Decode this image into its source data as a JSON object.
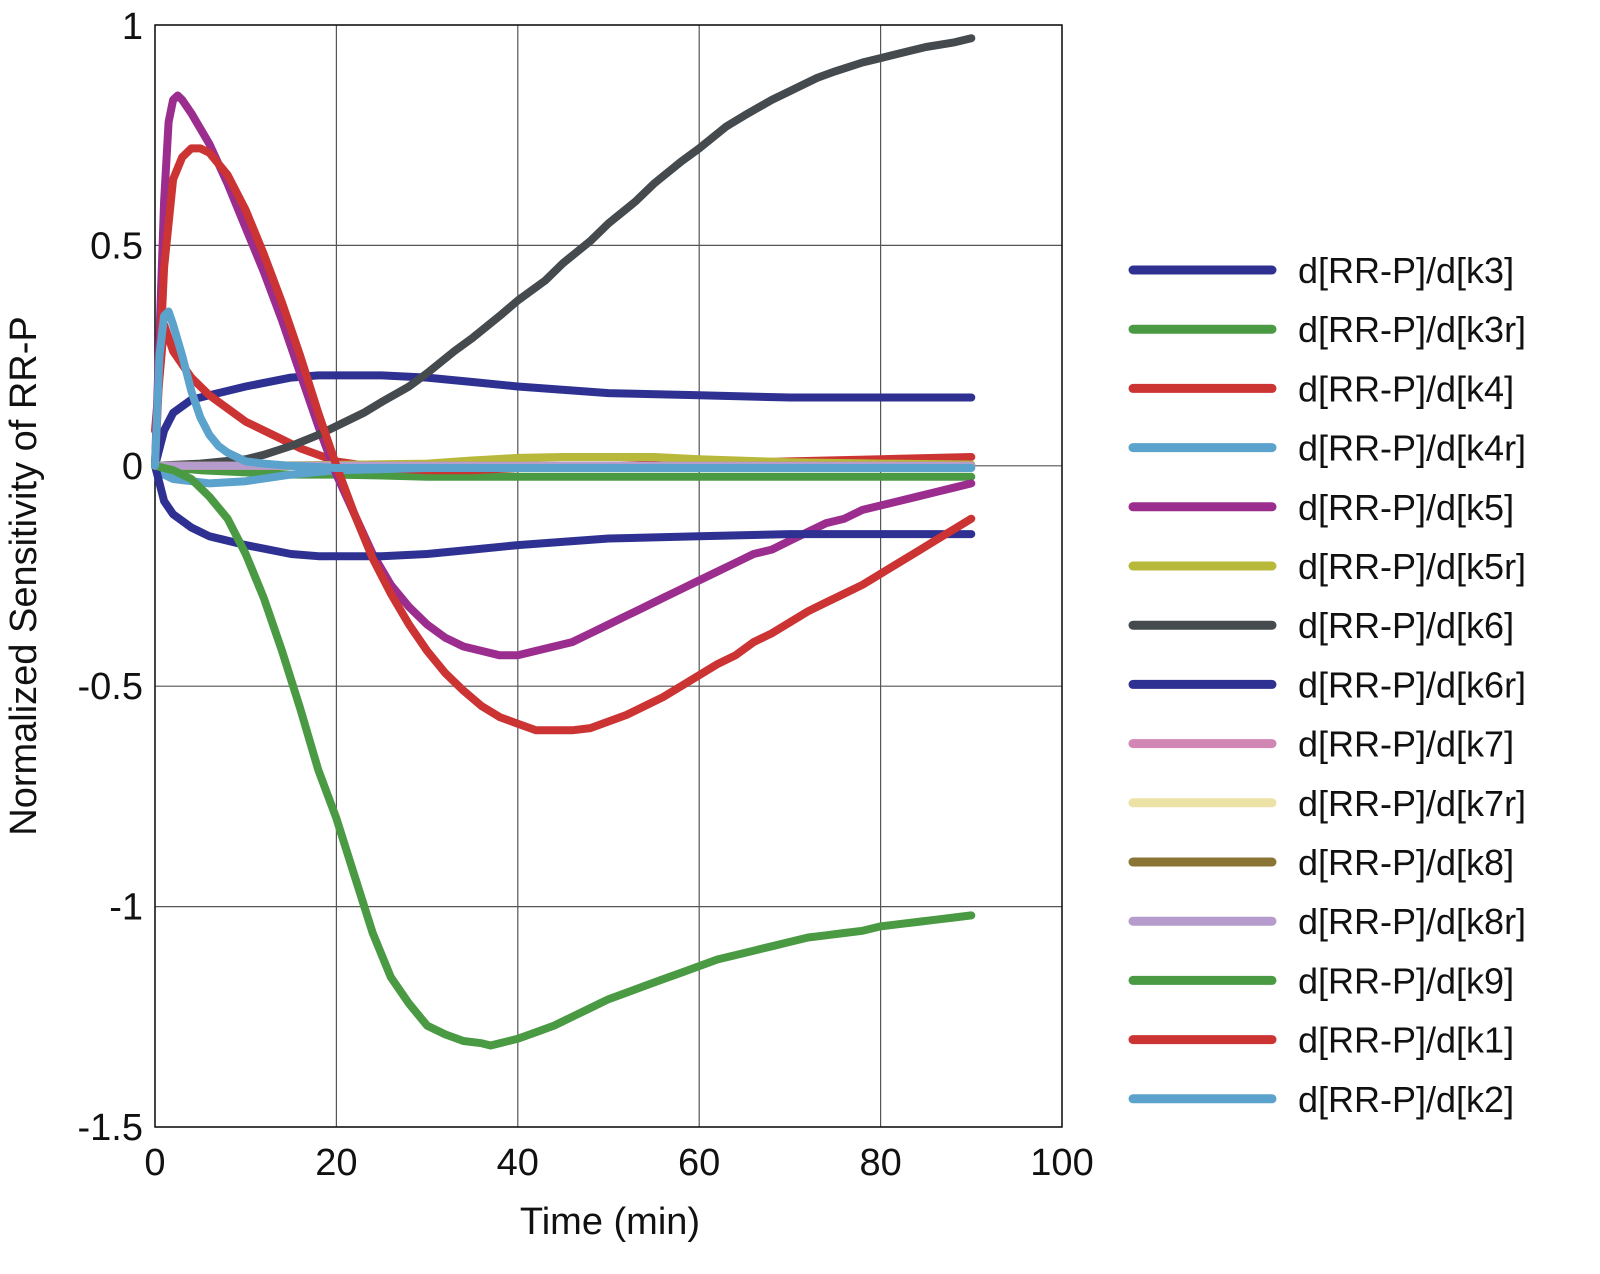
{
  "chart_data": {
    "type": "line",
    "title": "",
    "xlabel": "Time (min)",
    "ylabel": "Normalized Sensitivity of RR-P",
    "xlim": [
      0,
      100
    ],
    "ylim": [
      -1.5,
      1
    ],
    "xticks": [
      0,
      20,
      40,
      60,
      80,
      100
    ],
    "xtick_labels": [
      "0",
      "20",
      "40",
      "60",
      "80",
      "100"
    ],
    "yticks": [
      1,
      0.5,
      0,
      -0.5,
      -1,
      -1.5
    ],
    "ytick_labels": [
      "1",
      "0.5",
      "0",
      "-0.5",
      "-1",
      "-1.5"
    ],
    "grid": true,
    "legend_position": "right",
    "series": [
      {
        "name": "d[RR-P]/d[k3]",
        "color": "#2e3192",
        "x": [
          0,
          1,
          2,
          4,
          6,
          8,
          10,
          15,
          18,
          20,
          25,
          30,
          35,
          40,
          50,
          60,
          70,
          80,
          90
        ],
        "y": [
          0,
          0.08,
          0.12,
          0.15,
          0.16,
          0.17,
          0.18,
          0.2,
          0.205,
          0.205,
          0.205,
          0.2,
          0.19,
          0.18,
          0.165,
          0.16,
          0.155,
          0.155,
          0.155
        ]
      },
      {
        "name": "d[RR-P]/d[k3r]",
        "color": "#4a9a44",
        "x": [
          0,
          2,
          5,
          10,
          15,
          20,
          25,
          30,
          40,
          50,
          60,
          70,
          80,
          90
        ],
        "y": [
          0,
          -0.005,
          -0.01,
          -0.015,
          -0.02,
          -0.02,
          -0.022,
          -0.025,
          -0.025,
          -0.025,
          -0.025,
          -0.025,
          -0.025,
          -0.025
        ]
      },
      {
        "name": "d[RR-P]/d[k4]",
        "color": "#cc3333",
        "x": [
          0,
          1,
          2,
          4,
          6,
          8,
          10,
          13,
          16,
          20,
          25,
          30,
          35,
          40,
          50,
          60,
          70,
          80,
          90
        ],
        "y": [
          0.08,
          0.32,
          0.26,
          0.2,
          0.16,
          0.13,
          0.1,
          0.07,
          0.04,
          0.01,
          -0.005,
          -0.01,
          -0.01,
          -0.005,
          0,
          0.005,
          0.01,
          0.015,
          0.02
        ]
      },
      {
        "name": "d[RR-P]/d[k4r]",
        "color": "#5ba3cc",
        "x": [
          0,
          1,
          2,
          4,
          6,
          10,
          15,
          20,
          30,
          40,
          50,
          60,
          70,
          80,
          90
        ],
        "y": [
          0,
          -0.02,
          -0.03,
          -0.035,
          -0.04,
          -0.035,
          -0.02,
          -0.01,
          -0.005,
          0,
          0,
          0,
          0,
          0,
          0
        ]
      },
      {
        "name": "d[RR-P]/d[k5]",
        "color": "#9b2d8e",
        "x": [
          0,
          1,
          1.5,
          2,
          2.5,
          3,
          4,
          6,
          8,
          10,
          12,
          14,
          16,
          18,
          20,
          22,
          24,
          26,
          28,
          30,
          32,
          34,
          36,
          38,
          40,
          42,
          44,
          46,
          48,
          50,
          52,
          54,
          56,
          58,
          60,
          62,
          64,
          66,
          68,
          70,
          72,
          74,
          76,
          78,
          80,
          82,
          84,
          86,
          88,
          90
        ],
        "y": [
          0,
          0.6,
          0.78,
          0.83,
          0.84,
          0.83,
          0.8,
          0.73,
          0.64,
          0.54,
          0.44,
          0.33,
          0.21,
          0.09,
          -0.02,
          -0.11,
          -0.2,
          -0.27,
          -0.32,
          -0.36,
          -0.39,
          -0.41,
          -0.42,
          -0.43,
          -0.43,
          -0.42,
          -0.41,
          -0.4,
          -0.38,
          -0.36,
          -0.34,
          -0.32,
          -0.3,
          -0.28,
          -0.26,
          -0.24,
          -0.22,
          -0.2,
          -0.19,
          -0.17,
          -0.15,
          -0.13,
          -0.12,
          -0.1,
          -0.09,
          -0.08,
          -0.07,
          -0.06,
          -0.05,
          -0.04
        ]
      },
      {
        "name": "d[RR-P]/d[k5r]",
        "color": "#b8b83a",
        "x": [
          0,
          5,
          10,
          20,
          30,
          35,
          40,
          45,
          50,
          55,
          60,
          70,
          80,
          90
        ],
        "y": [
          0,
          0,
          0,
          0.002,
          0.005,
          0.012,
          0.018,
          0.02,
          0.02,
          0.02,
          0.015,
          0.008,
          0.005,
          0.003
        ]
      },
      {
        "name": "d[RR-P]/d[k6]",
        "color": "#444a4d",
        "x": [
          0,
          5,
          10,
          12,
          15,
          18,
          20,
          23,
          25,
          28,
          30,
          33,
          35,
          38,
          40,
          43,
          45,
          48,
          50,
          53,
          55,
          58,
          60,
          63,
          65,
          68,
          70,
          73,
          75,
          78,
          80,
          83,
          85,
          88,
          90
        ],
        "y": [
          0,
          0.005,
          0.015,
          0.025,
          0.045,
          0.07,
          0.09,
          0.12,
          0.145,
          0.18,
          0.21,
          0.26,
          0.29,
          0.34,
          0.375,
          0.42,
          0.46,
          0.51,
          0.55,
          0.6,
          0.64,
          0.69,
          0.72,
          0.77,
          0.795,
          0.83,
          0.85,
          0.88,
          0.895,
          0.915,
          0.925,
          0.94,
          0.95,
          0.96,
          0.97
        ]
      },
      {
        "name": "d[RR-P]/d[k6r]",
        "color": "#2e3192",
        "x": [
          0,
          1,
          2,
          4,
          6,
          8,
          10,
          15,
          18,
          20,
          25,
          30,
          35,
          40,
          50,
          60,
          70,
          80,
          90
        ],
        "y": [
          0,
          -0.08,
          -0.11,
          -0.14,
          -0.16,
          -0.17,
          -0.18,
          -0.2,
          -0.205,
          -0.205,
          -0.205,
          -0.2,
          -0.19,
          -0.18,
          -0.165,
          -0.16,
          -0.155,
          -0.155,
          -0.155
        ]
      },
      {
        "name": "d[RR-P]/d[k7]",
        "color": "#d186b4",
        "x": [
          0,
          30,
          60,
          90
        ],
        "y": [
          0,
          0,
          0,
          0
        ]
      },
      {
        "name": "d[RR-P]/d[k7r]",
        "color": "#ede2a6",
        "x": [
          0,
          30,
          60,
          90
        ],
        "y": [
          0,
          0,
          0,
          0
        ]
      },
      {
        "name": "d[RR-P]/d[k8]",
        "color": "#8a7436",
        "x": [
          0,
          30,
          60,
          90
        ],
        "y": [
          0,
          0,
          0,
          0
        ]
      },
      {
        "name": "d[RR-P]/d[k8r]",
        "color": "#b59ccc",
        "x": [
          0,
          30,
          60,
          90
        ],
        "y": [
          0,
          0,
          0,
          0
        ]
      },
      {
        "name": "d[RR-P]/d[k9]",
        "color": "#4a9a44",
        "x": [
          0,
          2,
          4,
          6,
          8,
          10,
          12,
          14,
          16,
          18,
          20,
          22,
          24,
          26,
          28,
          30,
          32,
          34,
          36,
          37,
          38,
          40,
          42,
          44,
          46,
          48,
          50,
          52,
          54,
          56,
          58,
          60,
          62,
          64,
          66,
          68,
          70,
          72,
          74,
          76,
          78,
          80,
          82,
          84,
          86,
          88,
          90
        ],
        "y": [
          0,
          -0.01,
          -0.03,
          -0.07,
          -0.12,
          -0.2,
          -0.3,
          -0.42,
          -0.55,
          -0.69,
          -0.8,
          -0.93,
          -1.06,
          -1.16,
          -1.22,
          -1.27,
          -1.29,
          -1.305,
          -1.31,
          -1.315,
          -1.31,
          -1.3,
          -1.285,
          -1.27,
          -1.25,
          -1.23,
          -1.21,
          -1.195,
          -1.18,
          -1.165,
          -1.15,
          -1.135,
          -1.12,
          -1.11,
          -1.1,
          -1.09,
          -1.08,
          -1.07,
          -1.065,
          -1.06,
          -1.055,
          -1.045,
          -1.04,
          -1.035,
          -1.03,
          -1.025,
          -1.02
        ]
      },
      {
        "name": "d[RR-P]/d[k1]",
        "color": "#cc3333",
        "x": [
          0,
          1,
          2,
          3,
          4,
          5,
          6,
          8,
          10,
          12,
          14,
          16,
          18,
          20,
          22,
          24,
          26,
          28,
          30,
          32,
          34,
          36,
          38,
          40,
          42,
          44,
          46,
          48,
          50,
          52,
          54,
          56,
          58,
          60,
          62,
          64,
          66,
          68,
          70,
          72,
          74,
          76,
          78,
          80,
          82,
          84,
          86,
          88,
          90
        ],
        "y": [
          0,
          0.45,
          0.65,
          0.7,
          0.72,
          0.72,
          0.71,
          0.66,
          0.58,
          0.48,
          0.37,
          0.25,
          0.12,
          0,
          -0.11,
          -0.21,
          -0.29,
          -0.36,
          -0.42,
          -0.47,
          -0.51,
          -0.545,
          -0.57,
          -0.585,
          -0.6,
          -0.6,
          -0.6,
          -0.595,
          -0.58,
          -0.565,
          -0.545,
          -0.525,
          -0.5,
          -0.475,
          -0.45,
          -0.43,
          -0.4,
          -0.38,
          -0.355,
          -0.33,
          -0.31,
          -0.29,
          -0.27,
          -0.245,
          -0.22,
          -0.195,
          -0.17,
          -0.145,
          -0.12
        ]
      },
      {
        "name": "d[RR-P]/d[k2]",
        "color": "#5ba3cc",
        "x": [
          0,
          0.5,
          1,
          1.5,
          2,
          3,
          4,
          5,
          6,
          7,
          8,
          9,
          10,
          12,
          15,
          20,
          30,
          40,
          50,
          60,
          70,
          80,
          90
        ],
        "y": [
          0,
          0.25,
          0.34,
          0.35,
          0.32,
          0.25,
          0.17,
          0.11,
          0.07,
          0.045,
          0.03,
          0.02,
          0.01,
          0.005,
          0,
          -0.005,
          -0.005,
          -0.005,
          -0.005,
          -0.005,
          -0.005,
          -0.005,
          -0.005
        ]
      }
    ]
  }
}
